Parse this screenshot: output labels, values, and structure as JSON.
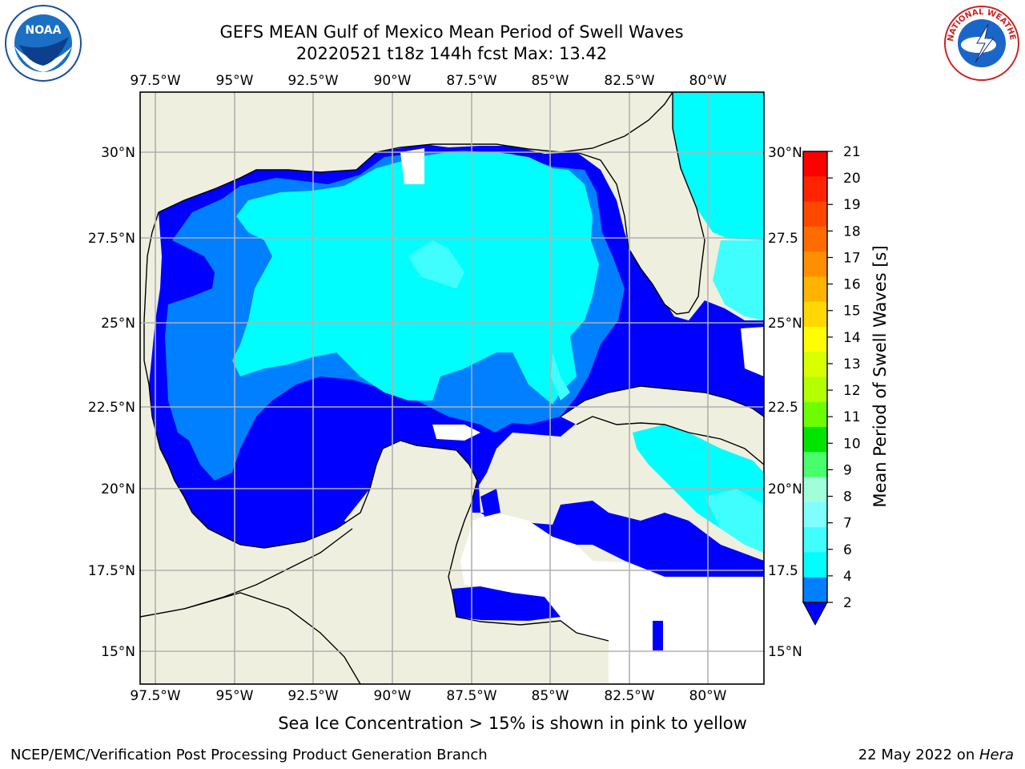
{
  "title": {
    "line1": "GEFS MEAN Gulf of Mexico Mean Period of Swell Waves",
    "line2": "20220521 t18z 144h fcst   Max: 13.42"
  },
  "axes": {
    "lon_labels": [
      "97.5°W",
      "95°W",
      "92.5°W",
      "90°W",
      "87.5°W",
      "85°W",
      "82.5°W",
      "80°W"
    ],
    "lat_labels_left": [
      "30°N",
      "27.5°N",
      "25°N",
      "22.5°N",
      "20°N",
      "17.5°N",
      "15°N"
    ],
    "lat_labels_right": [
      "30°N",
      "27.5",
      "25°N",
      "22.5",
      "20°N",
      "17.5",
      "15°N"
    ]
  },
  "colorbar": {
    "title": "Mean Period of Swell Waves [s]",
    "ticks": [
      "21",
      "20",
      "19",
      "18",
      "17",
      "16",
      "15",
      "14",
      "13",
      "12",
      "11",
      "10",
      "9",
      "8",
      "7",
      "6",
      "4",
      "2"
    ],
    "colors": [
      "#fe0000",
      "#fe2400",
      "#fe4800",
      "#fe6c00",
      "#fe9000",
      "#feb400",
      "#fed800",
      "#fefe00",
      "#d8fe00",
      "#b4fe00",
      "#6cfe00",
      "#00e400",
      "#48fe6c",
      "#a0feda",
      "#80fefe",
      "#40fefe",
      "#00fefe",
      "#0080fe"
    ],
    "extend_color": "#0000fe"
  },
  "map_colors": {
    "land": "#efefdf",
    "ocean_deep": "#0000fe",
    "ocean_mid": "#0080fe",
    "ocean_cyan": "#00fefe",
    "ocean_light": "#40fefe",
    "ocean_pale": "#80fefe",
    "grid": "#b0b0b0"
  },
  "notes": {
    "ice": "Sea Ice Concentration > 15% is shown in pink to yellow",
    "footer_left": "NCEP/EMC/Verification Post Processing Product Generation Branch",
    "footer_date": "22 May 2022 on ",
    "footer_host": "Hera"
  },
  "logos": {
    "noaa_text": "NOAA",
    "nws_text": "NATIONAL WEATHER SERVICE"
  }
}
